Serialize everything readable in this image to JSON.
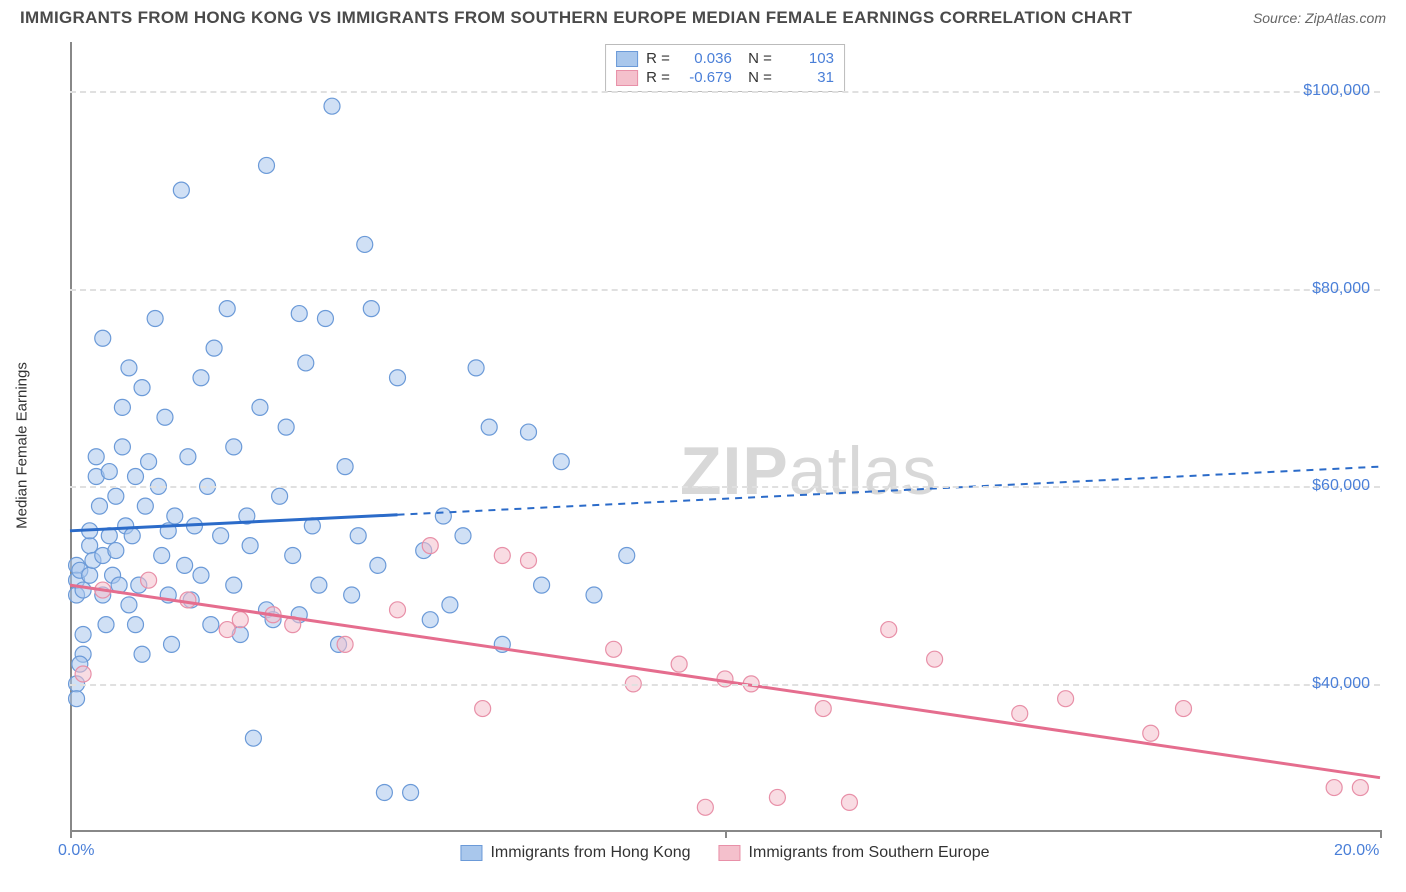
{
  "title": "IMMIGRANTS FROM HONG KONG VS IMMIGRANTS FROM SOUTHERN EUROPE MEDIAN FEMALE EARNINGS CORRELATION CHART",
  "source_label": "Source: ",
  "source_name": "ZipAtlas.com",
  "y_axis_label": "Median Female Earnings",
  "watermark_bold": "ZIP",
  "watermark_rest": "atlas",
  "chart": {
    "type": "scatter",
    "xlim": [
      0,
      20
    ],
    "ylim": [
      25000,
      105000
    ],
    "x_ticks": [
      0,
      10,
      20
    ],
    "x_tick_labels": [
      "0.0%",
      "",
      "20.0%"
    ],
    "y_ticks": [
      40000,
      60000,
      80000,
      100000
    ],
    "y_tick_labels": [
      "$40,000",
      "$60,000",
      "$80,000",
      "$100,000"
    ],
    "grid_color": "#e0e0e0",
    "background_color": "#ffffff",
    "axis_color": "#888888",
    "tick_label_color": "#4a7fd8",
    "series": [
      {
        "name": "Immigrants from Hong Kong",
        "color_fill": "#a9c7ec",
        "color_stroke": "#6b9ad8",
        "fill_opacity": 0.55,
        "marker_radius": 8,
        "R": "0.036",
        "N": "103",
        "trend": {
          "y_at_x0": 55500,
          "y_at_x20": 62000,
          "solid_until_x": 5.0,
          "color": "#2b6bc9",
          "width": 3
        },
        "points": [
          [
            0.1,
            49000
          ],
          [
            0.1,
            52000
          ],
          [
            0.1,
            50500
          ],
          [
            0.15,
            51500
          ],
          [
            0.1,
            40000
          ],
          [
            0.1,
            38500
          ],
          [
            0.2,
            45000
          ],
          [
            0.2,
            43000
          ],
          [
            0.2,
            49500
          ],
          [
            0.15,
            42000
          ],
          [
            0.3,
            51000
          ],
          [
            0.3,
            54000
          ],
          [
            0.3,
            55500
          ],
          [
            0.35,
            52500
          ],
          [
            0.4,
            61000
          ],
          [
            0.4,
            63000
          ],
          [
            0.45,
            58000
          ],
          [
            0.5,
            75000
          ],
          [
            0.5,
            53000
          ],
          [
            0.5,
            49000
          ],
          [
            0.55,
            46000
          ],
          [
            0.6,
            61500
          ],
          [
            0.6,
            55000
          ],
          [
            0.65,
            51000
          ],
          [
            0.7,
            59000
          ],
          [
            0.7,
            53500
          ],
          [
            0.75,
            50000
          ],
          [
            0.8,
            64000
          ],
          [
            0.8,
            68000
          ],
          [
            0.85,
            56000
          ],
          [
            0.9,
            72000
          ],
          [
            0.9,
            48000
          ],
          [
            0.95,
            55000
          ],
          [
            1.0,
            61000
          ],
          [
            1.0,
            46000
          ],
          [
            1.05,
            50000
          ],
          [
            1.1,
            70000
          ],
          [
            1.1,
            43000
          ],
          [
            1.15,
            58000
          ],
          [
            1.2,
            62500
          ],
          [
            1.3,
            77000
          ],
          [
            1.35,
            60000
          ],
          [
            1.4,
            53000
          ],
          [
            1.45,
            67000
          ],
          [
            1.5,
            49000
          ],
          [
            1.5,
            55500
          ],
          [
            1.55,
            44000
          ],
          [
            1.6,
            57000
          ],
          [
            1.7,
            90000
          ],
          [
            1.75,
            52000
          ],
          [
            1.8,
            63000
          ],
          [
            1.85,
            48500
          ],
          [
            1.9,
            56000
          ],
          [
            2.0,
            71000
          ],
          [
            2.0,
            51000
          ],
          [
            2.1,
            60000
          ],
          [
            2.15,
            46000
          ],
          [
            2.2,
            74000
          ],
          [
            2.3,
            55000
          ],
          [
            2.4,
            78000
          ],
          [
            2.5,
            50000
          ],
          [
            2.5,
            64000
          ],
          [
            2.6,
            45000
          ],
          [
            2.7,
            57000
          ],
          [
            2.75,
            54000
          ],
          [
            2.8,
            34500
          ],
          [
            2.9,
            68000
          ],
          [
            3.0,
            92500
          ],
          [
            3.0,
            47500
          ],
          [
            3.1,
            46500
          ],
          [
            3.2,
            59000
          ],
          [
            3.3,
            66000
          ],
          [
            3.4,
            53000
          ],
          [
            3.5,
            77500
          ],
          [
            3.5,
            47000
          ],
          [
            3.6,
            72500
          ],
          [
            3.7,
            56000
          ],
          [
            3.8,
            50000
          ],
          [
            3.9,
            77000
          ],
          [
            4.0,
            98500
          ],
          [
            4.1,
            44000
          ],
          [
            4.2,
            62000
          ],
          [
            4.3,
            49000
          ],
          [
            4.4,
            55000
          ],
          [
            4.5,
            84500
          ],
          [
            4.6,
            78000
          ],
          [
            4.7,
            52000
          ],
          [
            4.8,
            29000
          ],
          [
            5.0,
            71000
          ],
          [
            5.2,
            29000
          ],
          [
            5.4,
            53500
          ],
          [
            5.5,
            46500
          ],
          [
            5.7,
            57000
          ],
          [
            5.8,
            48000
          ],
          [
            6.0,
            55000
          ],
          [
            6.2,
            72000
          ],
          [
            6.4,
            66000
          ],
          [
            6.6,
            44000
          ],
          [
            7.0,
            65500
          ],
          [
            7.2,
            50000
          ],
          [
            7.5,
            62500
          ],
          [
            8.0,
            49000
          ],
          [
            8.5,
            53000
          ]
        ]
      },
      {
        "name": "Immigrants from Southern Europe",
        "color_fill": "#f4c0cc",
        "color_stroke": "#e890a8",
        "fill_opacity": 0.55,
        "marker_radius": 8,
        "R": "-0.679",
        "N": "31",
        "trend": {
          "y_at_x0": 50000,
          "y_at_x20": 30500,
          "solid_until_x": 20.0,
          "color": "#e56d8e",
          "width": 3
        },
        "points": [
          [
            0.2,
            41000
          ],
          [
            0.5,
            49500
          ],
          [
            1.2,
            50500
          ],
          [
            1.8,
            48500
          ],
          [
            2.4,
            45500
          ],
          [
            2.6,
            46500
          ],
          [
            3.1,
            47000
          ],
          [
            3.4,
            46000
          ],
          [
            4.2,
            44000
          ],
          [
            5.0,
            47500
          ],
          [
            5.5,
            54000
          ],
          [
            6.3,
            37500
          ],
          [
            6.6,
            53000
          ],
          [
            7.0,
            52500
          ],
          [
            8.3,
            43500
          ],
          [
            8.6,
            40000
          ],
          [
            9.3,
            42000
          ],
          [
            9.7,
            27500
          ],
          [
            10.0,
            40500
          ],
          [
            10.4,
            40000
          ],
          [
            10.8,
            28500
          ],
          [
            11.5,
            37500
          ],
          [
            11.9,
            28000
          ],
          [
            12.5,
            45500
          ],
          [
            13.2,
            42500
          ],
          [
            14.5,
            37000
          ],
          [
            15.2,
            38500
          ],
          [
            16.5,
            35000
          ],
          [
            17.0,
            37500
          ],
          [
            19.3,
            29500
          ],
          [
            19.7,
            29500
          ]
        ]
      }
    ]
  },
  "legend_bottom": [
    {
      "label": "Immigrants from Hong Kong",
      "fill": "#a9c7ec",
      "stroke": "#6b9ad8"
    },
    {
      "label": "Immigrants from Southern Europe",
      "fill": "#f4c0cc",
      "stroke": "#e890a8"
    }
  ]
}
